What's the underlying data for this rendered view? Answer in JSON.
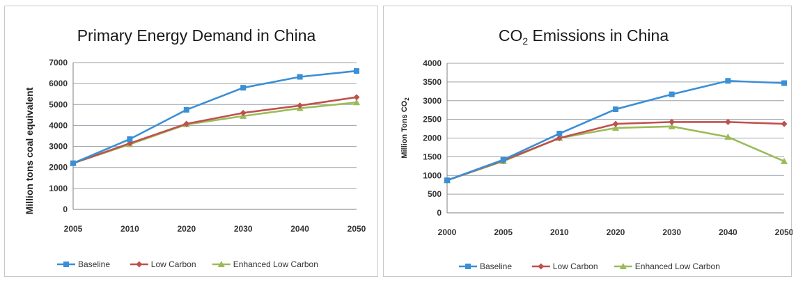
{
  "chart_data": [
    {
      "type": "line",
      "title": "Primary Energy Demand in China",
      "xlabel": "",
      "ylabel": "Million tons coal equivalent",
      "categories": [
        "2005",
        "2010",
        "2020",
        "2030",
        "2040",
        "2050"
      ],
      "ylim": [
        0,
        7000
      ],
      "yticks": [
        0,
        1000,
        2000,
        3000,
        4000,
        5000,
        6000,
        7000
      ],
      "grid": true,
      "legend": "bottom",
      "series": [
        {
          "name": "Baseline",
          "color": "#3a8fd6",
          "marker": "square",
          "values": [
            2200,
            3350,
            4750,
            5800,
            6320,
            6600
          ]
        },
        {
          "name": "Low Carbon",
          "color": "#c0504d",
          "marker": "diamond",
          "values": [
            2200,
            3150,
            4080,
            4600,
            4950,
            5350
          ]
        },
        {
          "name": "Enhanced Low Carbon",
          "color": "#9bbb59",
          "marker": "triangle",
          "values": [
            2200,
            3100,
            4050,
            4450,
            4820,
            5100
          ]
        }
      ]
    },
    {
      "type": "line",
      "title": "CO",
      "title_sub": "2",
      "title_rest": " Emissions in China",
      "xlabel": "",
      "ylabel": "Million Tons CO",
      "ylabel_sub": "2",
      "categories": [
        "2000",
        "2005",
        "2010",
        "2020",
        "2030",
        "2040",
        "2050"
      ],
      "ylim": [
        0,
        4000
      ],
      "yticks": [
        0,
        500,
        1000,
        1500,
        2000,
        2500,
        3000,
        3500,
        4000
      ],
      "grid": true,
      "legend": "bottom",
      "series": [
        {
          "name": "Baseline",
          "color": "#3a8fd6",
          "marker": "square",
          "values": [
            870,
            1420,
            2120,
            2770,
            3170,
            3530,
            3470
          ]
        },
        {
          "name": "Low Carbon",
          "color": "#c0504d",
          "marker": "diamond",
          "values": [
            870,
            1400,
            2000,
            2380,
            2430,
            2430,
            2380
          ]
        },
        {
          "name": "Enhanced Low Carbon",
          "color": "#9bbb59",
          "marker": "triangle",
          "values": [
            870,
            1380,
            2000,
            2270,
            2310,
            2030,
            1380
          ]
        }
      ]
    }
  ]
}
